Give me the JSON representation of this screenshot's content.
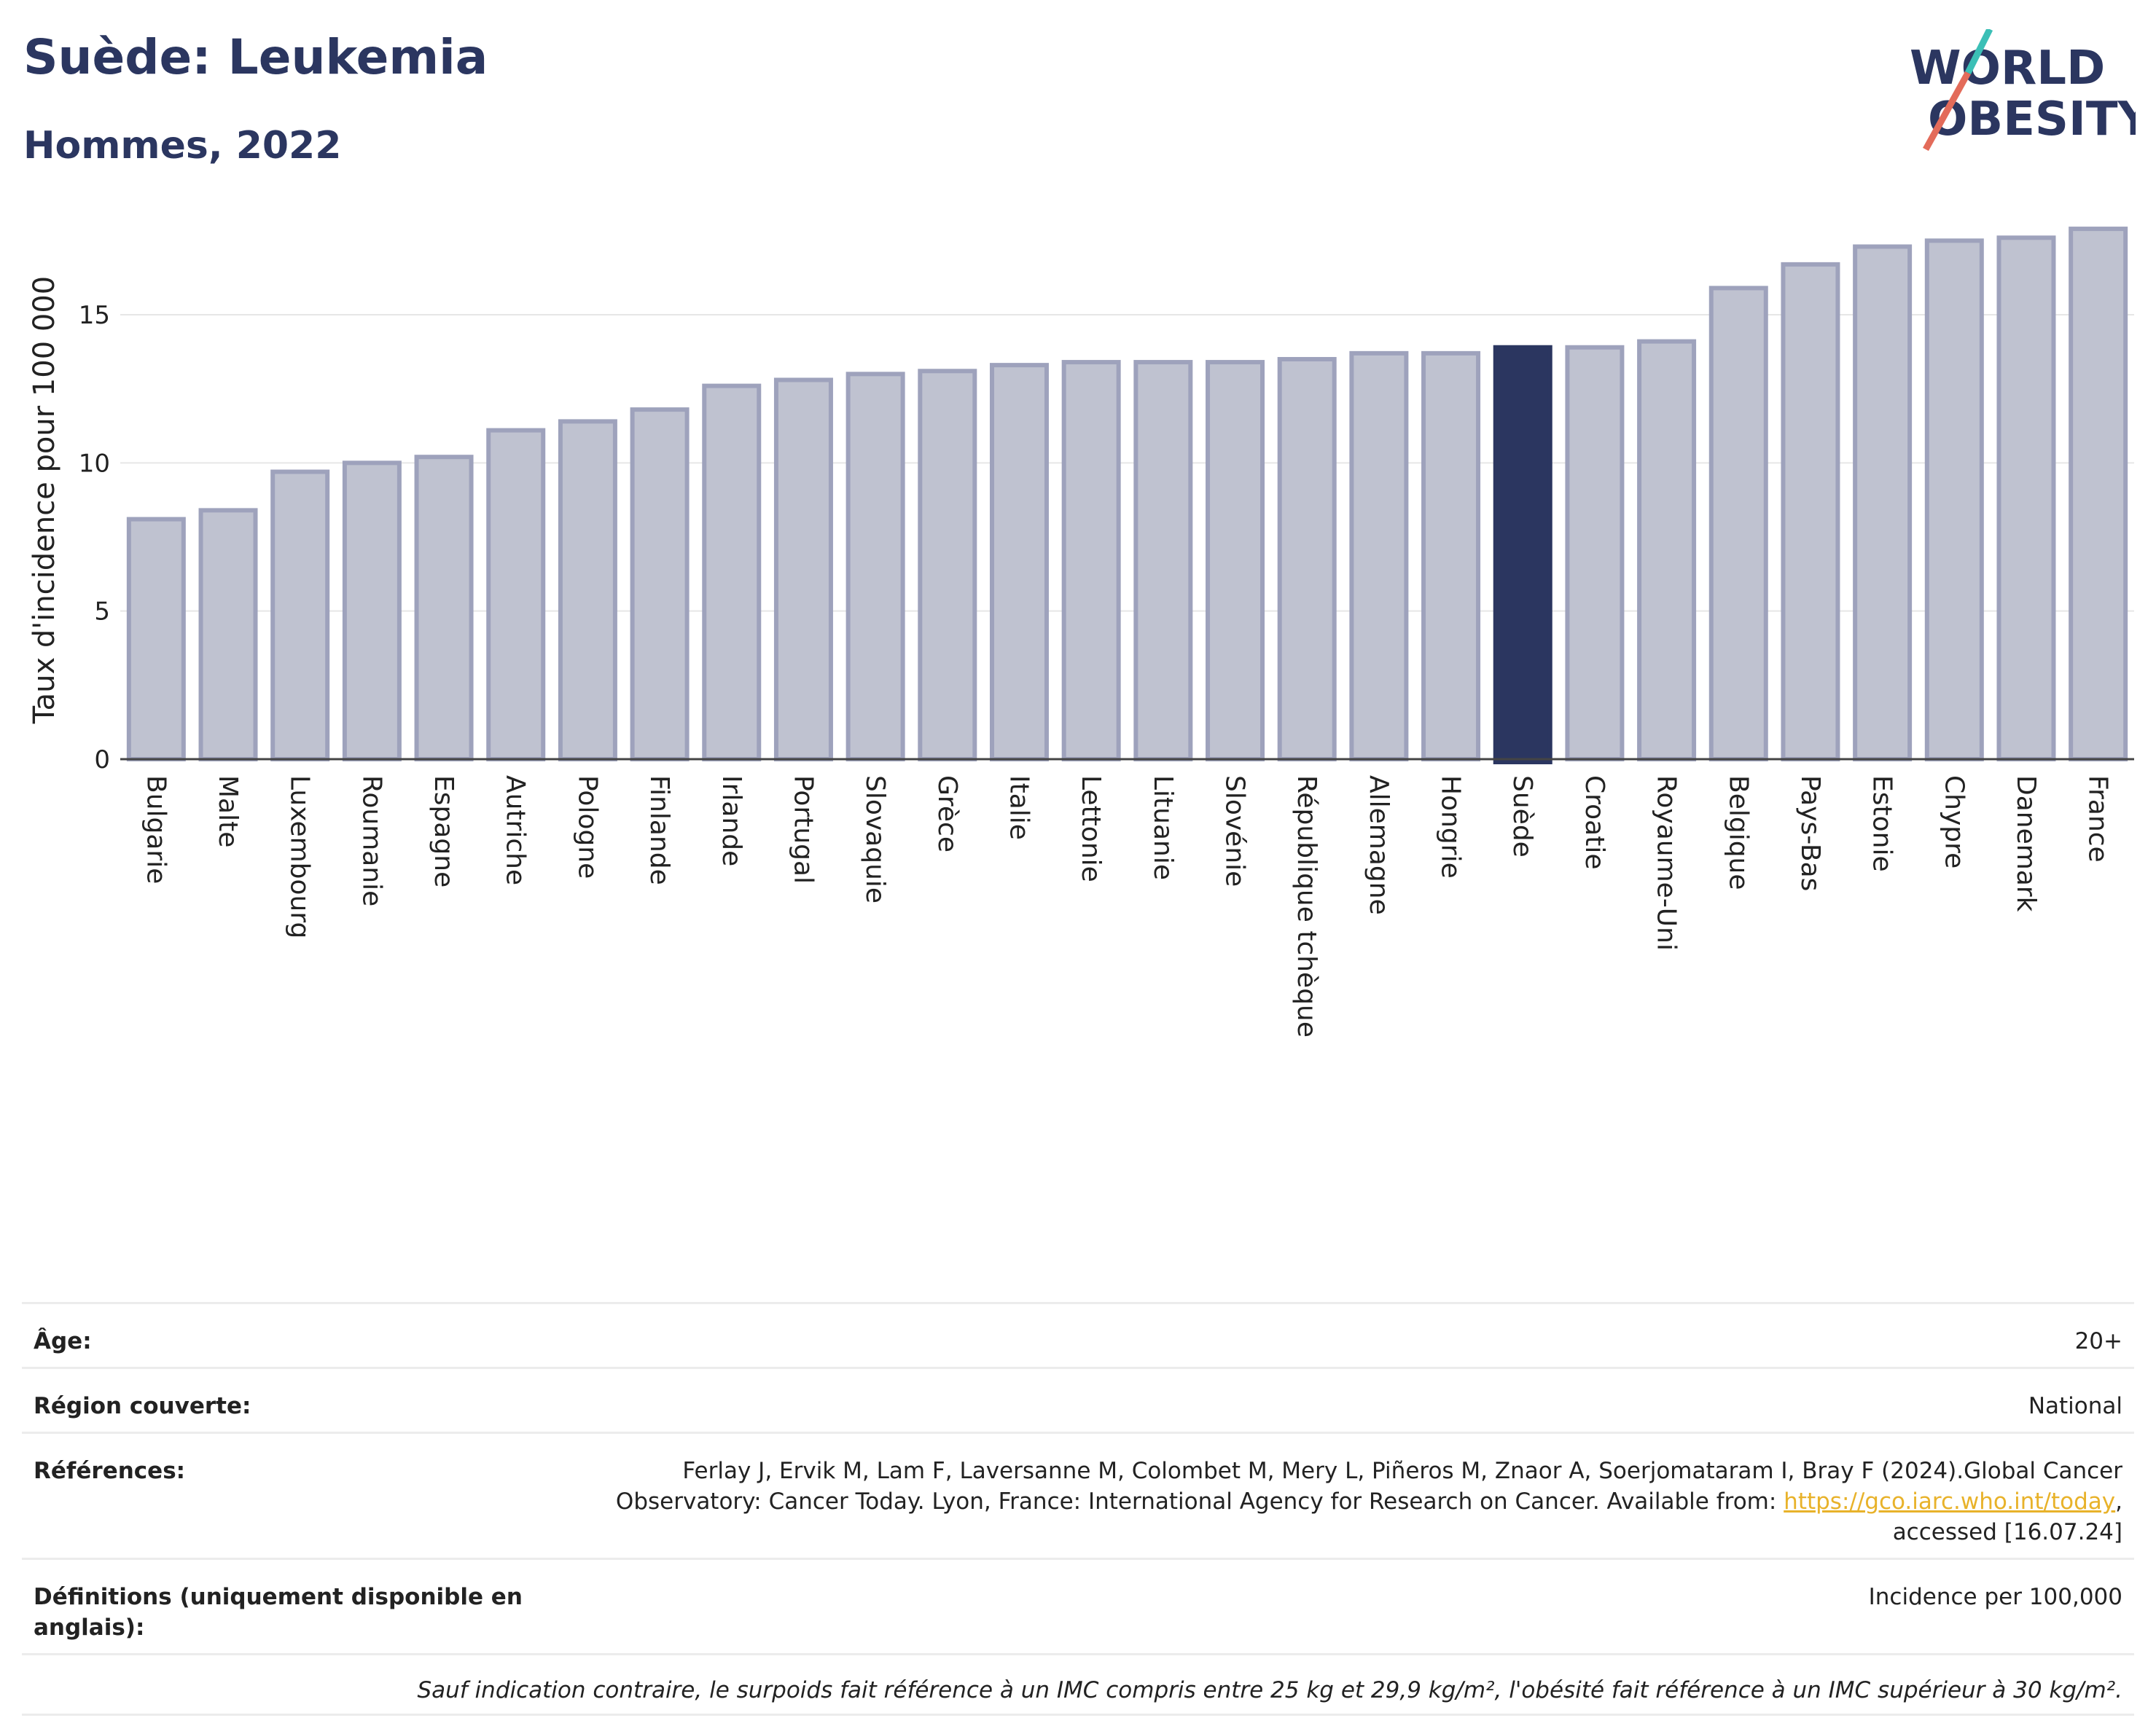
{
  "header": {
    "title": "Suède: Leukemia",
    "subtitle": "Hommes, 2022"
  },
  "logo": {
    "line1": "WORLD",
    "line2": "OBESITY"
  },
  "colors": {
    "highlight": "#2b3660",
    "bar": "#bfc2d0",
    "bar_border": "#9ea2bc",
    "accent_teal": "#3bbfb6",
    "accent_red": "#e36b5a"
  },
  "chart_data": {
    "type": "bar",
    "title": "Suède: Leukemia",
    "subtitle": "Hommes, 2022",
    "xlabel": "",
    "ylabel": "Taux d'incidence pour 100 000",
    "ylim": [
      0,
      18
    ],
    "yticks": [
      0,
      5,
      10,
      15
    ],
    "grid": true,
    "highlight": "Suède",
    "categories": [
      "Bulgarie",
      "Malte",
      "Luxembourg",
      "Roumanie",
      "Espagne",
      "Autriche",
      "Pologne",
      "Finlande",
      "Irlande",
      "Portugal",
      "Slovaquie",
      "Grèce",
      "Italie",
      "Lettonie",
      "Lituanie",
      "Slovénie",
      "République tchèque",
      "Allemagne",
      "Hongrie",
      "Suède",
      "Croatie",
      "Royaume-Uni",
      "Belgique",
      "Pays-Bas",
      "Estonie",
      "Chypre",
      "Danemark",
      "France"
    ],
    "values": [
      8.1,
      8.4,
      9.7,
      10.0,
      10.2,
      11.1,
      11.4,
      11.8,
      12.6,
      12.8,
      13.0,
      13.1,
      13.3,
      13.4,
      13.4,
      13.4,
      13.5,
      13.7,
      13.7,
      13.9,
      13.9,
      14.1,
      15.9,
      16.7,
      17.3,
      17.5,
      17.6,
      17.9
    ]
  },
  "info": {
    "age_label": "Âge:",
    "age_value": "20+",
    "region_label": "Région couverte:",
    "region_value": "National",
    "ref_label": "Références:",
    "ref_text1": "Ferlay J, Ervik M, Lam F, Laversanne M, Colombet M, Mery L, Piñeros M, Znaor A, Soerjomataram I, Bray F (2024).Global Cancer",
    "ref_text2": "Observatory: Cancer Today. Lyon, France: International Agency for Research on Cancer. Available from:",
    "ref_link": "https://gco.iarc.who.int/today",
    "ref_text3": "accessed [16.07.24]",
    "def_label": "Définitions (uniquement disponible en anglais):",
    "def_value": "Incidence per 100,000",
    "note": "Sauf indication contraire, le surpoids fait référence à un IMC compris entre 25 kg et 29,9 kg/m², l'obésité fait référence à un IMC supérieur à 30 kg/m²."
  }
}
